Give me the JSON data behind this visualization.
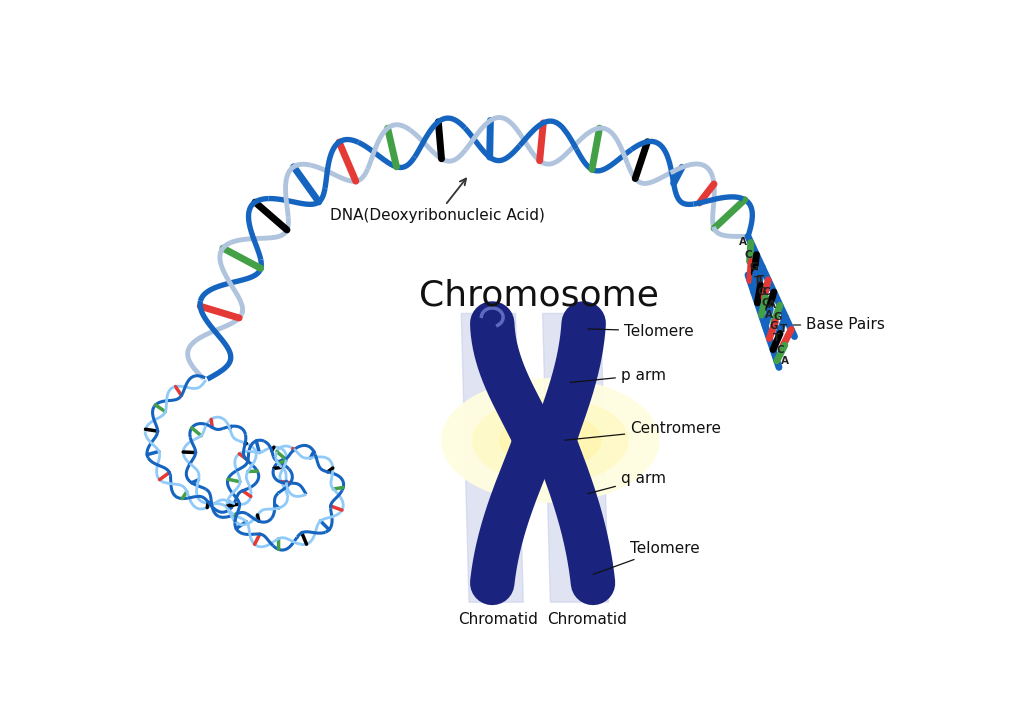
{
  "background_color": "#ffffff",
  "title": "Chromosome",
  "title_fontsize": 26,
  "chromosome_color": "#1a237e",
  "chromatid_bg_color": "#c5cce8",
  "rung_colors": [
    "#e53935",
    "#43a047",
    "#000000",
    "#1565c0"
  ],
  "strand1_color": "#1565c0",
  "strand2_color": "#90a4ae",
  "annotation_fontsize": 11,
  "label_fontsize": 11,
  "dna_label": "DNA(Deoxyribonucleic Acid)",
  "base_pairs_label": "Base Pairs"
}
